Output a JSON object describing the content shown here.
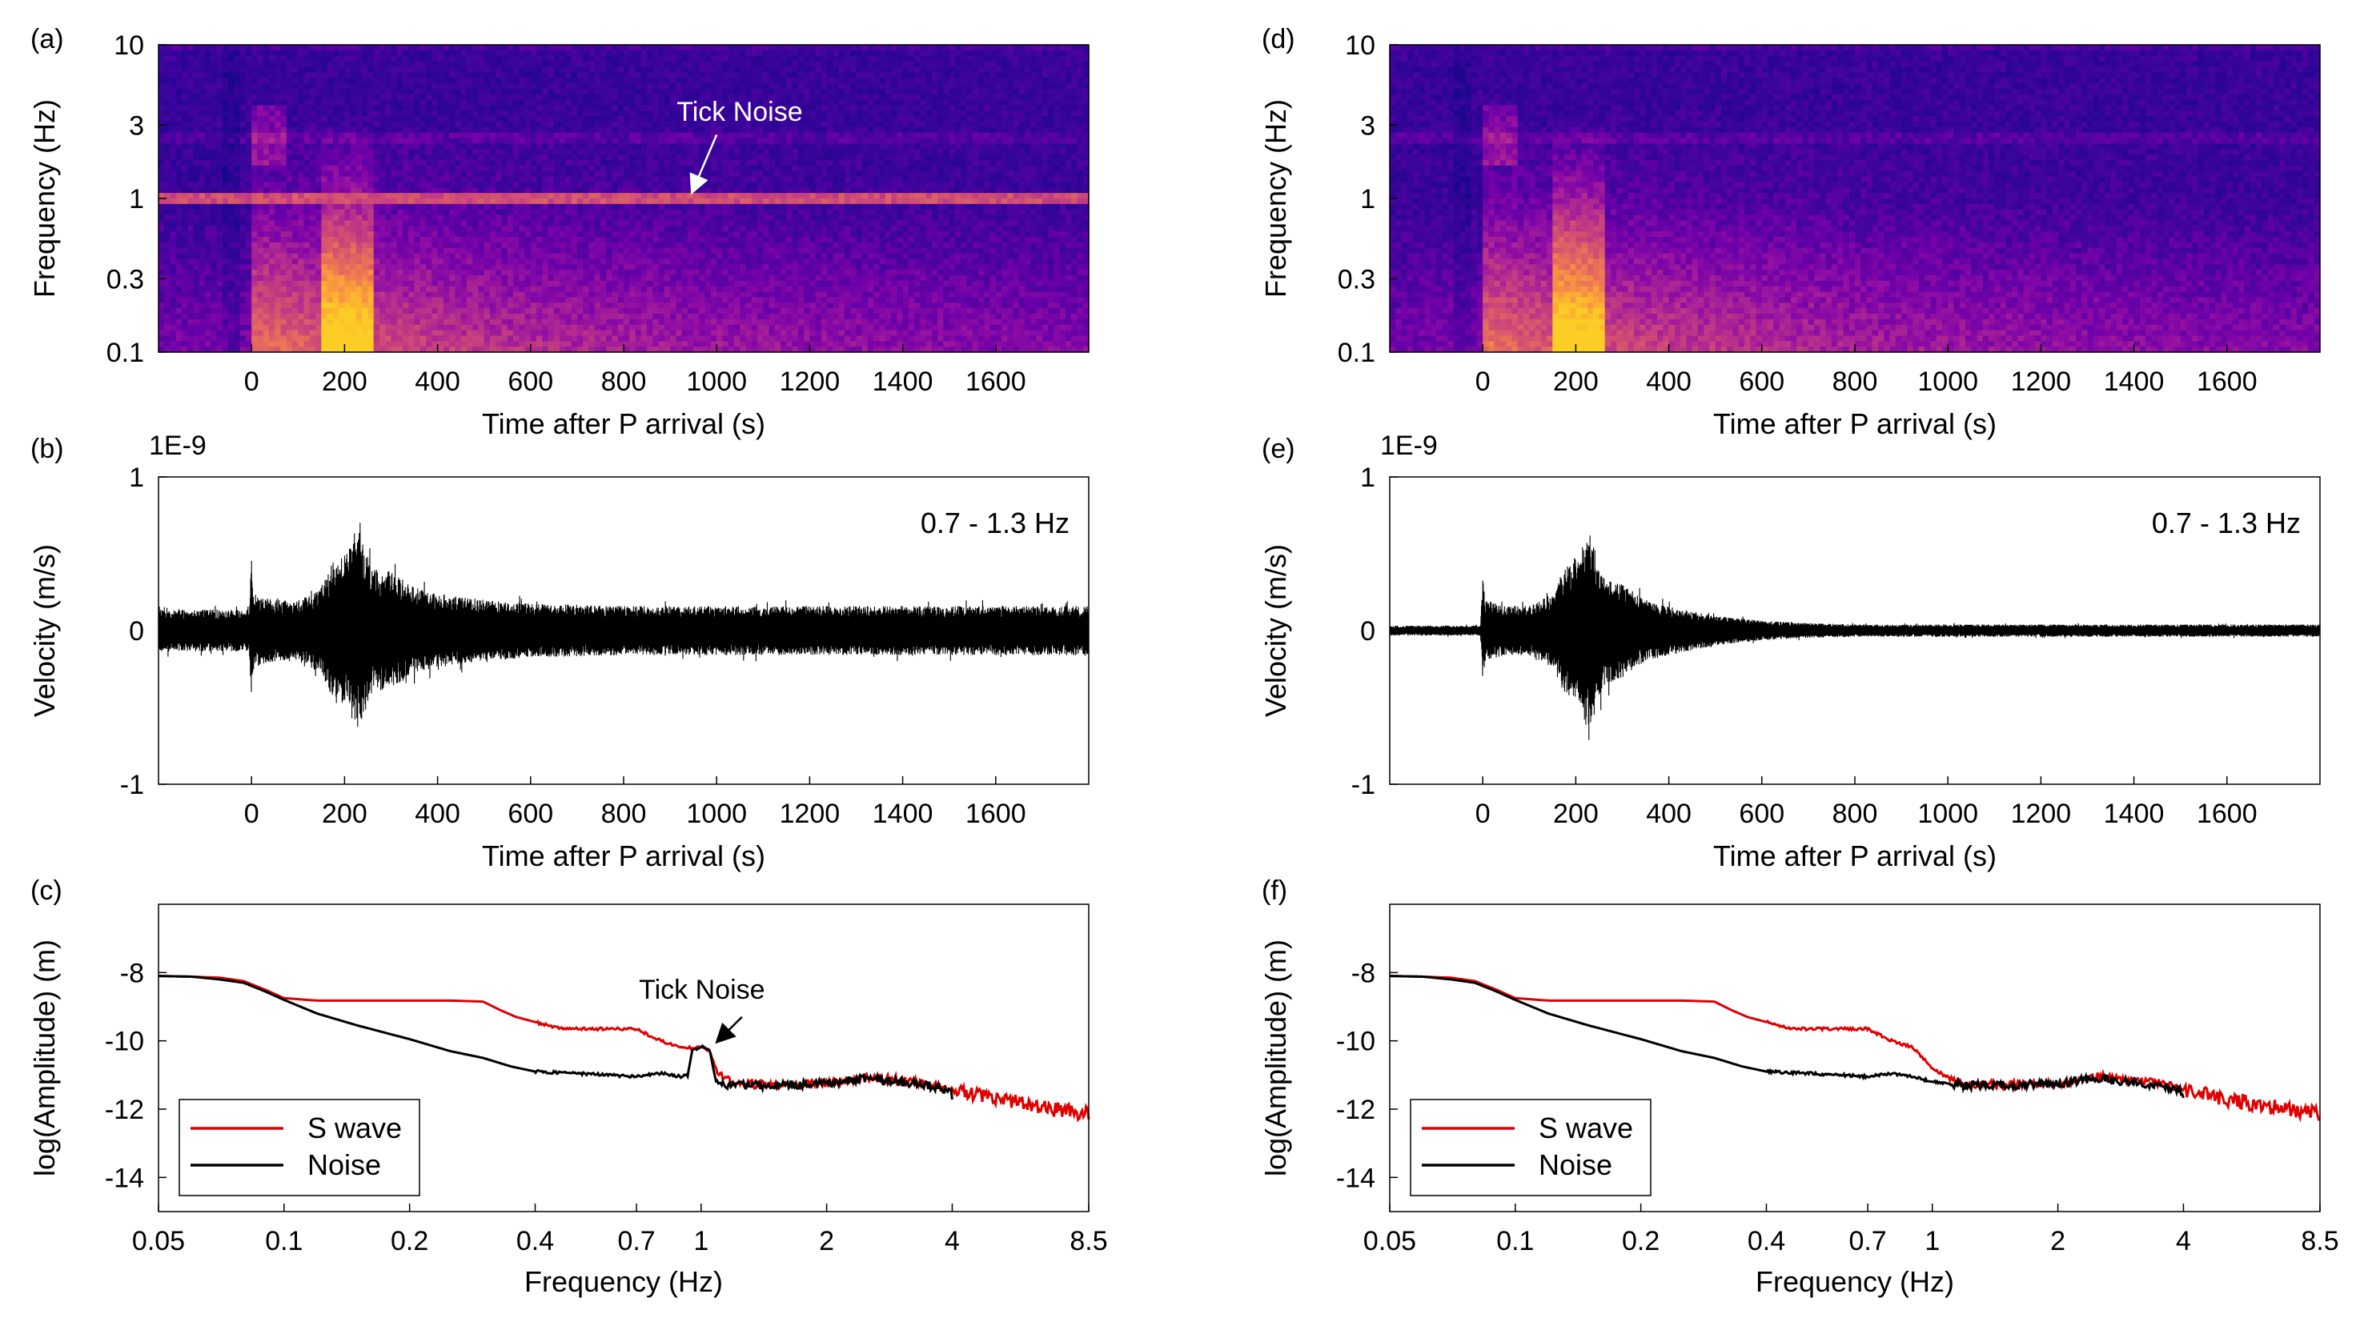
{
  "figure": {
    "panels": {
      "a": "(a)",
      "b": "(b)",
      "c": "(c)",
      "d": "(d)",
      "e": "(e)",
      "f": "(f)"
    }
  },
  "chart_data": [
    {
      "id": "a",
      "type": "heatmap",
      "panel_label": "(a)",
      "xlabel": "Time after P arrival (s)",
      "ylabel": "Frequency (Hz)",
      "xlim": [
        -200,
        1800
      ],
      "ylim": [
        0.1,
        10
      ],
      "yscale": "log",
      "xticks": [
        0,
        200,
        400,
        600,
        800,
        1000,
        1200,
        1400,
        1600
      ],
      "yticks": [
        0.1,
        0.3,
        1,
        3,
        10
      ],
      "ytick_labels": [
        "0.1",
        "0.3",
        "1",
        "3",
        "10"
      ],
      "colormap": [
        "#0d0887",
        "#2a0593",
        "#41049d",
        "#6a00a8",
        "#8f0da4",
        "#b12a90",
        "#cc4778",
        "#e16462",
        "#f2844b",
        "#fca636",
        "#fcce25"
      ],
      "tick_noise_line_hz": 1.0,
      "annotation": {
        "text": "Tick Noise",
        "x": 1000,
        "y": 1.6
      }
    },
    {
      "id": "b",
      "type": "line",
      "panel_label": "(b)",
      "xlabel": "Time after P arrival (s)",
      "ylabel": "Velocity (m/s)",
      "y_multiplier": "1E-9",
      "xlim": [
        -200,
        1800
      ],
      "ylim": [
        -1,
        1
      ],
      "xticks": [
        0,
        200,
        400,
        600,
        800,
        1000,
        1200,
        1400,
        1600
      ],
      "yticks": [
        -1,
        0,
        1
      ],
      "band_label": "0.7 - 1.3 Hz",
      "envelope": {
        "t": [
          -200,
          -5,
          0,
          5,
          50,
          100,
          150,
          180,
          200,
          230,
          260,
          300,
          350,
          400,
          500,
          600,
          800,
          1000,
          1200,
          1400,
          1600,
          1800
        ],
        "amplitude": [
          0.17,
          0.17,
          0.58,
          0.3,
          0.25,
          0.25,
          0.35,
          0.6,
          0.62,
          0.8,
          0.5,
          0.48,
          0.35,
          0.3,
          0.25,
          0.22,
          0.2,
          0.2,
          0.2,
          0.2,
          0.2,
          0.2
        ]
      }
    },
    {
      "id": "c",
      "type": "line",
      "panel_label": "(c)",
      "xlabel": "Frequency (Hz)",
      "ylabel": "log(Amplitude) (m)",
      "xscale": "log",
      "xlim": [
        0.05,
        8.5
      ],
      "ylim": [
        -15,
        -6
      ],
      "xticks": [
        0.05,
        0.1,
        0.2,
        0.4,
        0.7,
        1,
        2,
        4,
        8.5
      ],
      "xtick_labels": [
        "0.05",
        "0.1",
        "0.2",
        "0.4",
        "0.7",
        "1",
        "2",
        "4",
        "8.5"
      ],
      "yticks": [
        -14,
        -12,
        -10,
        -8
      ],
      "legend": {
        "position": "lower-left",
        "entries": [
          "S wave",
          "Noise"
        ]
      },
      "annotation": {
        "text": "Tick Noise",
        "x": 1.05,
        "y": -10.1
      },
      "series": [
        {
          "name": "S wave",
          "color": "#e00000",
          "x": [
            0.05,
            0.06,
            0.07,
            0.08,
            0.09,
            0.1,
            0.12,
            0.15,
            0.2,
            0.25,
            0.3,
            0.33,
            0.36,
            0.4,
            0.45,
            0.5,
            0.6,
            0.7,
            0.8,
            0.9,
            0.95,
            1.0,
            1.05,
            1.1,
            1.2,
            1.5,
            2.0,
            2.5,
            3.0,
            3.5,
            4.0,
            5.0,
            6.0,
            7.0,
            8.0,
            8.5
          ],
          "y": [
            -8.1,
            -8.12,
            -8.15,
            -8.25,
            -8.5,
            -8.75,
            -8.82,
            -8.82,
            -8.82,
            -8.82,
            -8.85,
            -9.1,
            -9.3,
            -9.45,
            -9.62,
            -9.65,
            -9.65,
            -9.65,
            -10.0,
            -10.2,
            -10.2,
            -10.15,
            -10.3,
            -11.0,
            -11.25,
            -11.3,
            -11.25,
            -11.05,
            -11.15,
            -11.25,
            -11.45,
            -11.7,
            -11.85,
            -12.0,
            -12.1,
            -12.15
          ]
        },
        {
          "name": "Noise",
          "color": "#000000",
          "x": [
            0.05,
            0.06,
            0.07,
            0.08,
            0.09,
            0.1,
            0.12,
            0.15,
            0.2,
            0.25,
            0.3,
            0.35,
            0.4,
            0.5,
            0.6,
            0.7,
            0.8,
            0.85,
            0.9,
            0.93,
            0.95,
            1.0,
            1.05,
            1.08,
            1.1,
            1.2,
            1.5,
            2.0,
            2.5,
            3.0,
            3.5,
            4.0
          ],
          "y": [
            -8.1,
            -8.12,
            -8.2,
            -8.3,
            -8.55,
            -8.8,
            -9.2,
            -9.55,
            -9.95,
            -10.3,
            -10.5,
            -10.75,
            -10.9,
            -10.95,
            -11.0,
            -11.05,
            -10.95,
            -11.0,
            -11.05,
            -11.0,
            -10.3,
            -10.15,
            -10.3,
            -11.1,
            -11.25,
            -11.3,
            -11.3,
            -11.25,
            -11.1,
            -11.2,
            -11.3,
            -11.5
          ]
        }
      ]
    },
    {
      "id": "d",
      "type": "heatmap",
      "panel_label": "(d)",
      "xlabel": "Time after P arrival (s)",
      "ylabel": "Frequency (Hz)",
      "xlim": [
        -200,
        1800
      ],
      "ylim": [
        0.1,
        10
      ],
      "yscale": "log",
      "xticks": [
        0,
        200,
        400,
        600,
        800,
        1000,
        1200,
        1400,
        1600
      ],
      "yticks": [
        0.1,
        0.3,
        1,
        3,
        10
      ],
      "ytick_labels": [
        "0.1",
        "0.3",
        "1",
        "3",
        "10"
      ],
      "colormap": [
        "#0d0887",
        "#2a0593",
        "#41049d",
        "#6a00a8",
        "#8f0da4",
        "#b12a90",
        "#cc4778",
        "#e16462",
        "#f2844b",
        "#fca636",
        "#fcce25"
      ]
    },
    {
      "id": "e",
      "type": "line",
      "panel_label": "(e)",
      "xlabel": "Time after P arrival (s)",
      "ylabel": "Velocity (m/s)",
      "y_multiplier": "1E-9",
      "xlim": [
        -200,
        1800
      ],
      "ylim": [
        -1,
        1
      ],
      "xticks": [
        0,
        200,
        400,
        600,
        800,
        1000,
        1200,
        1400,
        1600
      ],
      "yticks": [
        -1,
        0,
        1
      ],
      "band_label": "0.7 - 1.3 Hz",
      "envelope": {
        "t": [
          -200,
          -5,
          0,
          5,
          50,
          100,
          150,
          180,
          200,
          230,
          260,
          300,
          350,
          400,
          500,
          600,
          700,
          800,
          1000,
          1200,
          1400,
          1600,
          1800
        ],
        "amplitude": [
          0.04,
          0.04,
          0.42,
          0.25,
          0.2,
          0.2,
          0.3,
          0.55,
          0.6,
          0.8,
          0.45,
          0.38,
          0.25,
          0.2,
          0.12,
          0.08,
          0.06,
          0.05,
          0.05,
          0.05,
          0.05,
          0.05,
          0.05
        ]
      }
    },
    {
      "id": "f",
      "type": "line",
      "panel_label": "(f)",
      "xlabel": "Frequency (Hz)",
      "ylabel": "log(Amplitude) (m)",
      "xscale": "log",
      "xlim": [
        0.05,
        8.5
      ],
      "ylim": [
        -15,
        -6
      ],
      "xticks": [
        0.05,
        0.1,
        0.2,
        0.4,
        0.7,
        1,
        2,
        4,
        8.5
      ],
      "xtick_labels": [
        "0.05",
        "0.1",
        "0.2",
        "0.4",
        "0.7",
        "1",
        "2",
        "4",
        "8.5"
      ],
      "yticks": [
        -14,
        -12,
        -10,
        -8
      ],
      "legend": {
        "position": "lower-left",
        "entries": [
          "S wave",
          "Noise"
        ]
      },
      "series": [
        {
          "name": "S wave",
          "color": "#e00000",
          "x": [
            0.05,
            0.06,
            0.07,
            0.08,
            0.09,
            0.1,
            0.12,
            0.15,
            0.2,
            0.25,
            0.3,
            0.33,
            0.36,
            0.4,
            0.45,
            0.5,
            0.6,
            0.7,
            0.8,
            0.9,
            1.0,
            1.1,
            1.2,
            1.5,
            2.0,
            2.5,
            3.0,
            3.5,
            4.0,
            5.0,
            6.0,
            7.0,
            8.0,
            8.5
          ],
          "y": [
            -8.1,
            -8.12,
            -8.15,
            -8.25,
            -8.5,
            -8.75,
            -8.82,
            -8.82,
            -8.82,
            -8.82,
            -8.85,
            -9.1,
            -9.3,
            -9.45,
            -9.62,
            -9.65,
            -9.65,
            -9.65,
            -10.0,
            -10.2,
            -10.8,
            -11.1,
            -11.25,
            -11.3,
            -11.25,
            -11.05,
            -11.15,
            -11.25,
            -11.45,
            -11.7,
            -11.85,
            -12.0,
            -12.1,
            -12.15
          ]
        },
        {
          "name": "Noise",
          "color": "#000000",
          "x": [
            0.05,
            0.06,
            0.07,
            0.08,
            0.09,
            0.1,
            0.12,
            0.15,
            0.2,
            0.25,
            0.3,
            0.35,
            0.4,
            0.5,
            0.6,
            0.7,
            0.8,
            0.9,
            1.0,
            1.1,
            1.2,
            1.5,
            2.0,
            2.5,
            3.0,
            3.5,
            4.0
          ],
          "y": [
            -8.1,
            -8.12,
            -8.2,
            -8.3,
            -8.55,
            -8.8,
            -9.2,
            -9.55,
            -9.95,
            -10.3,
            -10.5,
            -10.75,
            -10.9,
            -10.95,
            -11.0,
            -11.05,
            -10.95,
            -11.05,
            -11.2,
            -11.25,
            -11.3,
            -11.3,
            -11.25,
            -11.1,
            -11.2,
            -11.3,
            -11.5
          ]
        }
      ]
    }
  ]
}
